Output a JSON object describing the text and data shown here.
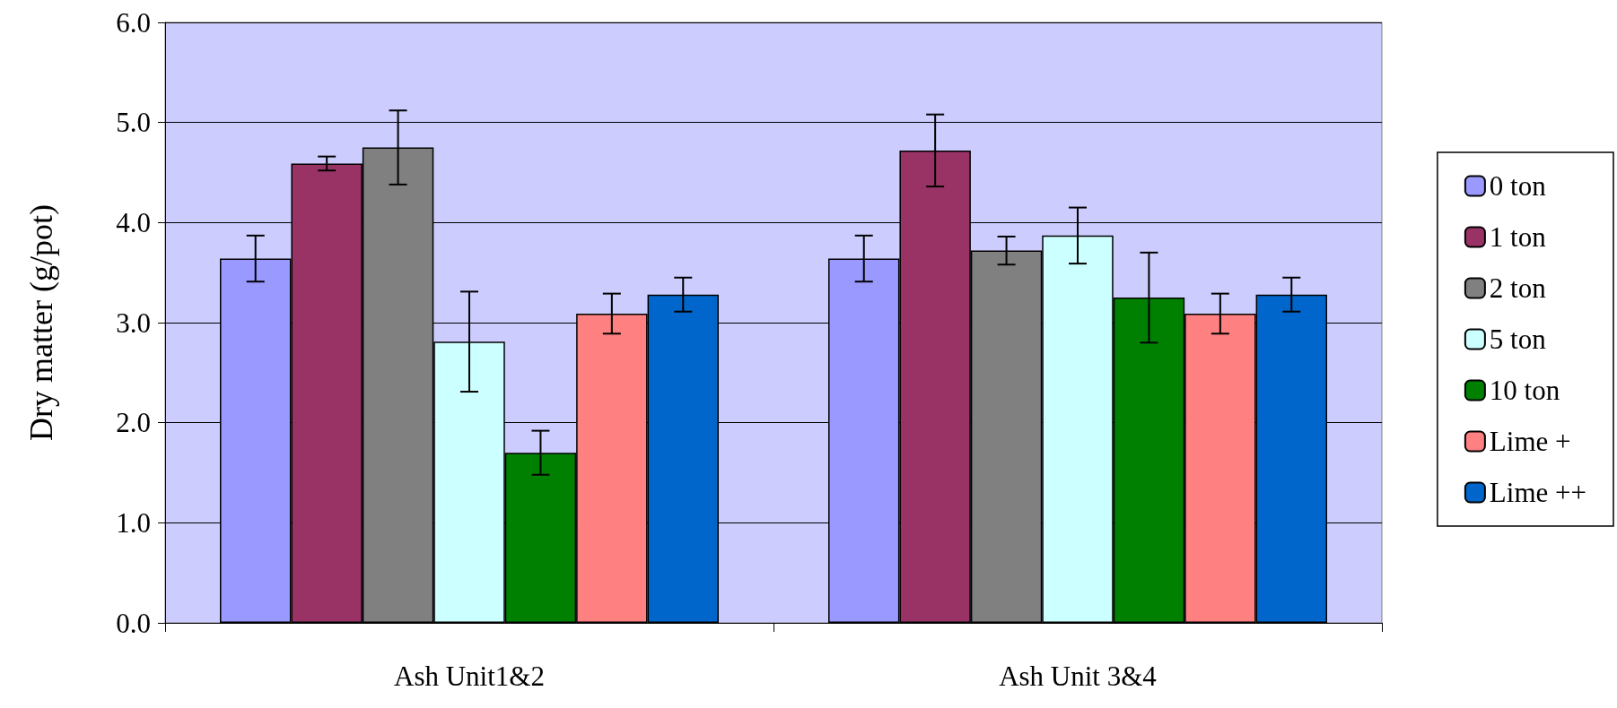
{
  "chart_data": {
    "type": "bar",
    "ylabel": "Dry matter (g/pot)",
    "categories": [
      "Ash Unit1&2",
      "Ash Unit 3&4"
    ],
    "series": [
      {
        "name": "0 ton",
        "color": "#9999ff",
        "values": [
          3.64,
          3.64
        ],
        "errors": [
          0.23,
          0.23
        ]
      },
      {
        "name": "1 ton",
        "color": "#993366",
        "values": [
          4.59,
          4.72
        ],
        "errors": [
          0.07,
          0.36
        ]
      },
      {
        "name": "2 ton",
        "color": "#808080",
        "values": [
          4.75,
          3.72
        ],
        "errors": [
          0.37,
          0.14
        ]
      },
      {
        "name": "5 ton",
        "color": "#ccffff",
        "values": [
          2.81,
          3.87
        ],
        "errors": [
          0.5,
          0.28
        ]
      },
      {
        "name": "10 ton",
        "color": "#008000",
        "values": [
          1.7,
          3.25
        ],
        "errors": [
          0.22,
          0.45
        ]
      },
      {
        "name": "Lime +",
        "color": "#ff8080",
        "values": [
          3.09,
          3.09
        ],
        "errors": [
          0.2,
          0.2
        ]
      },
      {
        "name": "Lime ++",
        "color": "#0066cc",
        "values": [
          3.28,
          3.28
        ],
        "errors": [
          0.17,
          0.17
        ]
      }
    ],
    "ylim": [
      0,
      6
    ],
    "yticks": [
      {
        "value": 0,
        "label": "0.0"
      },
      {
        "value": 1,
        "label": "1.0"
      },
      {
        "value": 2,
        "label": "2.0"
      },
      {
        "value": 3,
        "label": "3.0"
      },
      {
        "value": 4,
        "label": "4.0"
      },
      {
        "value": 5,
        "label": "5.0"
      },
      {
        "value": 6,
        "label": "6.0"
      }
    ],
    "grid": "y",
    "legend": "right"
  }
}
